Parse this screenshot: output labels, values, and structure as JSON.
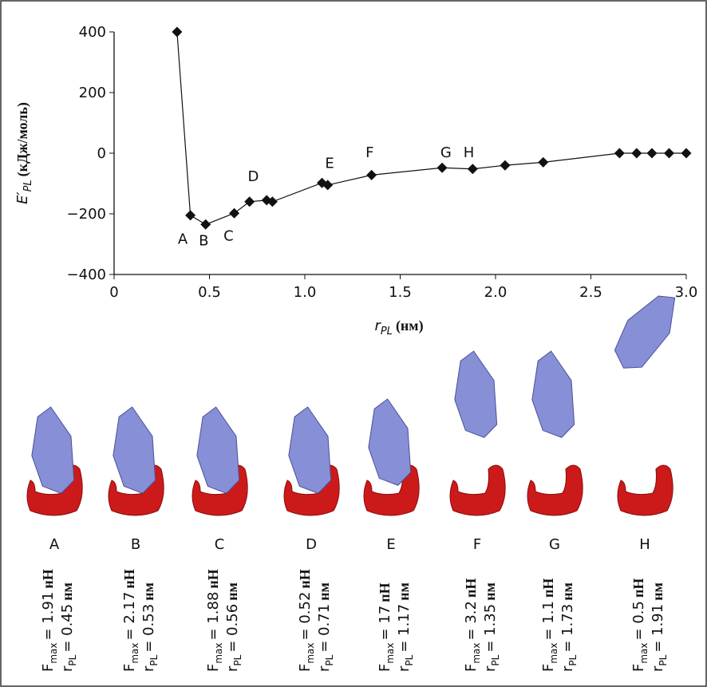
{
  "chart_data": {
    "type": "line",
    "y_label": {
      "symbol": "E′",
      "subscript": "PL",
      "unit": "(кДж/моль)"
    },
    "x_label": {
      "symbol": "r",
      "subscript": "PL",
      "unit": "(нм)"
    },
    "x": [
      0.33,
      0.4,
      0.48,
      0.63,
      0.71,
      0.8,
      0.83,
      1.09,
      1.12,
      1.35,
      1.72,
      1.88,
      2.05,
      2.25,
      2.65,
      2.74,
      2.82,
      2.91,
      3.0
    ],
    "series": [
      {
        "color": "#111111",
        "values": [
          400,
          -205,
          -235,
          -198,
          -160,
          -155,
          -160,
          -98,
          -105,
          -72,
          -48,
          -52,
          -40,
          -30,
          0,
          0,
          0,
          0,
          0
        ]
      }
    ],
    "xlim": [
      0,
      3
    ],
    "ylim": [
      -400,
      400
    ],
    "xticks": [
      0,
      0.5,
      {
        "value": 1,
        "label": "1.0"
      },
      1.5,
      {
        "value": 2,
        "label": "2.0"
      },
      2.5,
      {
        "value": 3,
        "label": "3.0"
      }
    ],
    "yticks": [
      400,
      200,
      0,
      {
        "value": -200,
        "label": "−200"
      },
      {
        "value": -400,
        "label": "−400"
      }
    ],
    "annotations": [
      {
        "text": "A",
        "x": 0.36,
        "y": -280
      },
      {
        "text": "B",
        "x": 0.47,
        "y": -285
      },
      {
        "text": "C",
        "x": 0.6,
        "y": -270
      },
      {
        "text": "D",
        "x": 0.73,
        "y": -74
      },
      {
        "text": "E",
        "x": 1.13,
        "y": -30
      },
      {
        "text": "F",
        "x": 1.34,
        "y": 5
      },
      {
        "text": "G",
        "x": 1.74,
        "y": 5
      },
      {
        "text": "H",
        "x": 1.86,
        "y": 5
      }
    ]
  },
  "panels": {
    "force_symbol": {
      "symbol": "F",
      "subscript": "max"
    },
    "r_symbol": {
      "symbol": "r",
      "subscript": "PL"
    },
    "items": [
      {
        "label": "A",
        "force": "= 1.91",
        "force_unit": "нН",
        "r": "= 0.45",
        "r_unit": "нм"
      },
      {
        "label": "B",
        "force": "= 2.17",
        "force_unit": "нН",
        "r": "= 0.53",
        "r_unit": "нм"
      },
      {
        "label": "C",
        "force": "= 1.88",
        "force_unit": "нН",
        "r": "= 0.56",
        "r_unit": "нм"
      },
      {
        "label": "D",
        "force": "= 0.52",
        "force_unit": "нН",
        "r": "= 0.71",
        "r_unit": "нм"
      },
      {
        "label": "E",
        "force": "= 17",
        "force_unit": "пН",
        "r": "= 1.17",
        "r_unit": "нм"
      },
      {
        "label": "F",
        "force": "= 3.2",
        "force_unit": "пН",
        "r": "= 1.35",
        "r_unit": "нм"
      },
      {
        "label": "G",
        "force": "= 1.1",
        "force_unit": "пН",
        "r": "= 1.73",
        "r_unit": "нм"
      },
      {
        "label": "H",
        "force": "= 0.5",
        "force_unit": "пН",
        "r": "= 1.91",
        "r_unit": "нм"
      }
    ]
  }
}
